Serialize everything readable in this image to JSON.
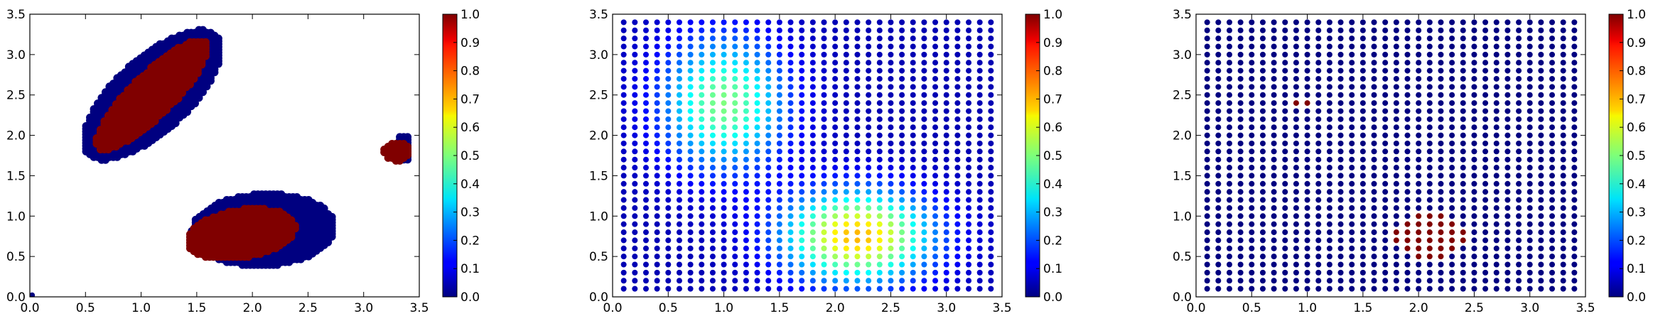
{
  "chart_data": [
    {
      "type": "scatter",
      "xlim": [
        0.0,
        3.5
      ],
      "ylim": [
        0.0,
        3.5
      ],
      "xticks": [
        "0.0",
        "0.5",
        "1.0",
        "1.5",
        "2.0",
        "2.5",
        "3.0",
        "3.5"
      ],
      "yticks": [
        "0.0",
        "0.5",
        "1.0",
        "1.5",
        "2.0",
        "2.5",
        "3.0",
        "3.5"
      ],
      "colorbar": {
        "range": [
          0.0,
          1.0
        ],
        "ticks": [
          "0.0",
          "0.1",
          "0.2",
          "0.3",
          "0.4",
          "0.5",
          "0.6",
          "0.7",
          "0.8",
          "0.9",
          "1.0"
        ],
        "colormap": "jet"
      },
      "grid": false,
      "description_of_values": "scattered point clouds valued 0 (blue fringe) and 1 (dark red core)",
      "regions": [
        {
          "shape": "ellipse",
          "cx": 1.1,
          "cy": 2.5,
          "rx": 0.95,
          "ry": 0.38,
          "angle_deg": 55,
          "value": 0.0
        },
        {
          "shape": "ellipse",
          "cx": 1.1,
          "cy": 2.5,
          "rx": 0.82,
          "ry": 0.22,
          "angle_deg": 55,
          "value": 1.0
        },
        {
          "shape": "ellipse",
          "cx": 2.1,
          "cy": 0.83,
          "rx": 0.65,
          "ry": 0.45,
          "angle_deg": 5,
          "value": 0.0
        },
        {
          "shape": "ellipse",
          "cx": 1.9,
          "cy": 0.78,
          "rx": 0.5,
          "ry": 0.3,
          "angle_deg": 15,
          "value": 1.0
        },
        {
          "shape": "ellipse",
          "cx": 3.37,
          "cy": 1.85,
          "rx": 0.05,
          "ry": 0.55,
          "angle_deg": 0,
          "value": 0.0
        },
        {
          "shape": "ellipse",
          "cx": 3.3,
          "cy": 1.8,
          "rx": 0.12,
          "ry": 0.12,
          "angle_deg": 0,
          "value": 1.0
        }
      ],
      "points": [
        {
          "x": 0.02,
          "y": 0.02,
          "v": 0.0
        }
      ]
    },
    {
      "type": "scatter",
      "xlim": [
        0.0,
        3.5
      ],
      "ylim": [
        0.0,
        3.5
      ],
      "xticks": [
        "0.0",
        "0.5",
        "1.0",
        "1.5",
        "2.0",
        "2.5",
        "3.0",
        "3.5"
      ],
      "yticks": [
        "0.0",
        "0.5",
        "1.0",
        "1.5",
        "2.0",
        "2.5",
        "3.0",
        "3.5"
      ],
      "colorbar": {
        "range": [
          0.0,
          1.0
        ],
        "ticks": [
          "0.0",
          "0.1",
          "0.2",
          "0.3",
          "0.4",
          "0.5",
          "0.6",
          "0.7",
          "0.8",
          "0.9",
          "1.0"
        ],
        "colormap": "jet"
      },
      "grid": false,
      "grid_points": {
        "x_start": 0.1,
        "y_start": 0.1,
        "step": 0.1,
        "count": 34
      },
      "field": "regular grid; values ~0.05 background with two soft peaks",
      "peaks": [
        {
          "cx": 1.0,
          "cy": 2.4,
          "sx": 0.55,
          "sy": 0.8,
          "amp": 0.45
        },
        {
          "cx": 2.2,
          "cy": 0.75,
          "sx": 0.65,
          "sy": 0.55,
          "amp": 0.65
        }
      ],
      "background": 0.05
    },
    {
      "type": "scatter",
      "xlim": [
        0.0,
        3.5
      ],
      "ylim": [
        0.0,
        3.5
      ],
      "xticks": [
        "0.0",
        "0.5",
        "1.0",
        "1.5",
        "2.0",
        "2.5",
        "3.0",
        "3.5"
      ],
      "yticks": [
        "0.0",
        "0.5",
        "1.0",
        "1.5",
        "2.0",
        "2.5",
        "3.0",
        "3.5"
      ],
      "colorbar": {
        "range": [
          0.0,
          1.0
        ],
        "ticks": [
          "0.0",
          "0.1",
          "0.2",
          "0.3",
          "0.4",
          "0.5",
          "0.6",
          "0.7",
          "0.8",
          "0.9",
          "1.0"
        ],
        "colormap": "jet"
      },
      "grid": false,
      "grid_points": {
        "x_start": 0.1,
        "y_start": 0.1,
        "step": 0.1,
        "count": 34
      },
      "background": 0.0,
      "hot_regions": [
        {
          "cx": 0.95,
          "cy": 2.4,
          "rx": 0.07,
          "ry": 0.12,
          "value": 1.0
        },
        {
          "cx": 2.1,
          "cy": 0.75,
          "rx": 0.35,
          "ry": 0.28,
          "value": 1.0
        }
      ]
    }
  ]
}
